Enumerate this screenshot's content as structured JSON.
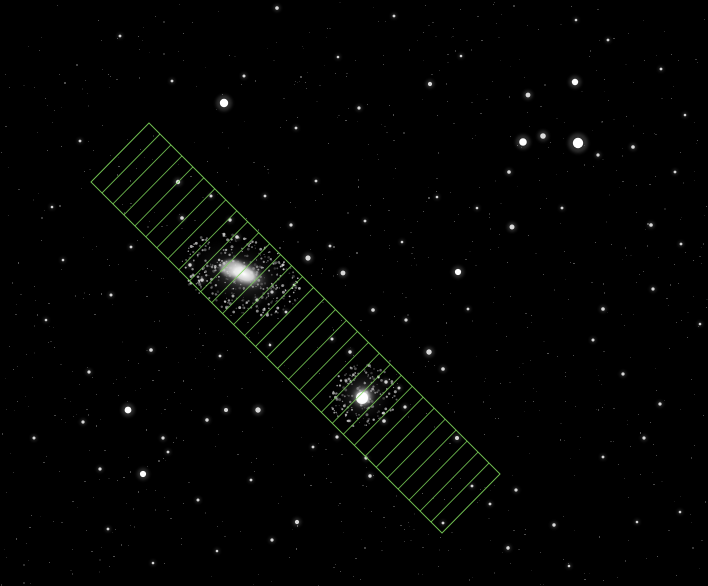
{
  "image": {
    "background_color": "#000000",
    "star_color": "#ffffff",
    "overlay_color": "#7cd35a",
    "overlay_shape": "rectangular-slit-grid"
  },
  "regions": {
    "galaxies": [
      {
        "name": "extended-galaxy"
      },
      {
        "name": "compact-galaxy"
      }
    ],
    "overlay": {
      "type": "rotated-rectangle-with-slices",
      "slice_count": 32
    }
  }
}
